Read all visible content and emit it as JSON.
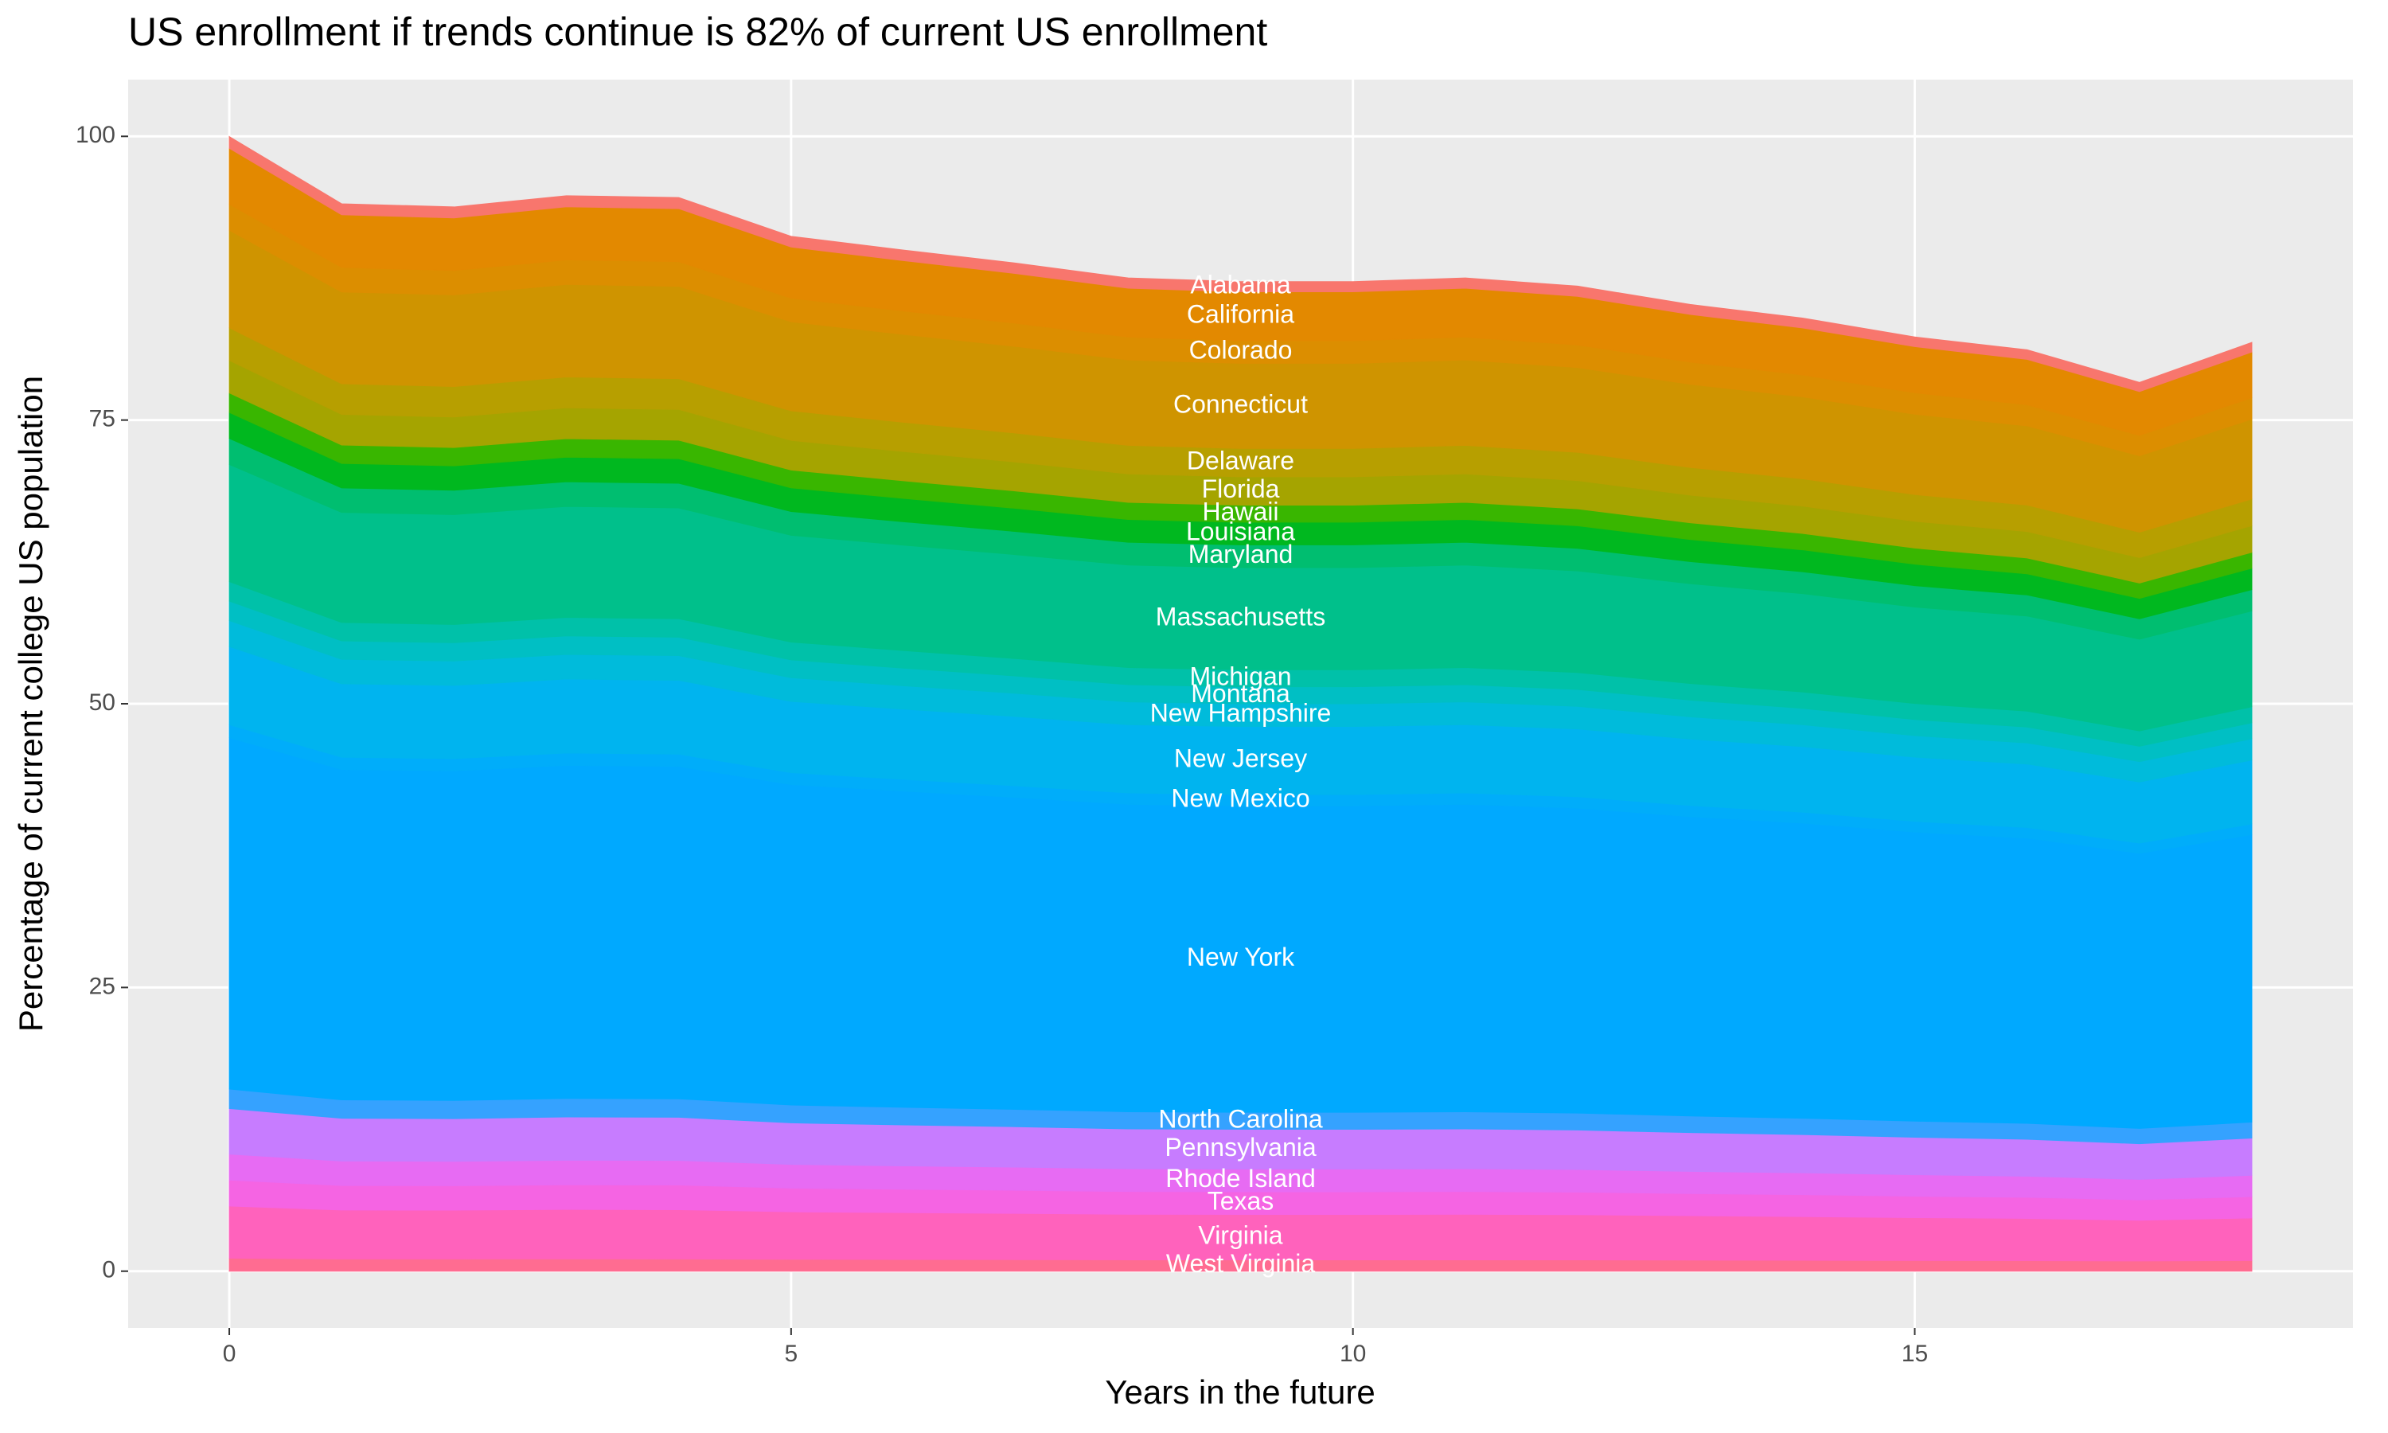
{
  "chart_data": {
    "type": "area",
    "title": "US enrollment if trends continue is 82% of current US enrollment",
    "x_label": "Years in the future",
    "y_label": "Percentage of current college US population",
    "x": [
      0,
      1,
      2,
      3,
      4,
      5,
      6,
      7,
      8,
      9,
      10,
      11,
      12,
      13,
      14,
      15,
      16,
      17,
      18
    ],
    "xlim": [
      -0.9,
      18.9
    ],
    "xticks": [
      0,
      5,
      10,
      15
    ],
    "ylim": [
      -5,
      105
    ],
    "yticks": [
      0,
      25,
      50,
      75,
      100
    ],
    "stacked": true,
    "grid": true,
    "series": [
      {
        "name": "Alabama",
        "color": "#f8766d",
        "values": [
          1.03,
          0.97,
          0.97,
          0.98,
          0.98,
          0.94,
          0.93,
          0.92,
          0.9,
          0.9,
          0.9,
          0.9,
          0.9,
          0.88,
          0.87,
          0.85,
          0.84,
          0.81,
          0.84
        ]
      },
      {
        "name": "California",
        "color": "#e38900",
        "values": [
          4.93,
          4.64,
          4.63,
          4.67,
          4.67,
          4.5,
          4.44,
          4.38,
          4.31,
          4.3,
          4.3,
          4.31,
          4.28,
          4.2,
          4.14,
          4.06,
          4.0,
          3.86,
          4.03
        ]
      },
      {
        "name": "Colorado",
        "color": "#dc8e00",
        "values": [
          2.29,
          2.16,
          2.15,
          2.17,
          2.17,
          2.09,
          2.06,
          2.04,
          2.01,
          2,
          2,
          2.01,
          1.99,
          1.95,
          1.93,
          1.89,
          1.86,
          1.8,
          1.88
        ]
      },
      {
        "name": "Connecticut",
        "color": "#cf9400",
        "values": [
          8.6,
          8.09,
          8.07,
          8.15,
          8.14,
          7.84,
          7.74,
          7.64,
          7.53,
          7.5,
          7.5,
          7.53,
          7.47,
          7.33,
          7.22,
          7.08,
          6.98,
          6.73,
          7.04
        ]
      },
      {
        "name": "Delaware",
        "color": "#b79f00",
        "values": [
          2.87,
          2.7,
          2.69,
          2.72,
          2.71,
          2.61,
          2.58,
          2.55,
          2.51,
          2.5,
          2.5,
          2.51,
          2.49,
          2.44,
          2.41,
          2.36,
          2.33,
          2.24,
          2.35
        ]
      },
      {
        "name": "Florida",
        "color": "#a5a400",
        "values": [
          2.87,
          2.7,
          2.69,
          2.72,
          2.71,
          2.61,
          2.58,
          2.55,
          2.51,
          2.5,
          2.5,
          2.51,
          2.49,
          2.44,
          2.41,
          2.36,
          2.33,
          2.24,
          2.35
        ]
      },
      {
        "name": "Hawaii",
        "color": "#39b600",
        "values": [
          1.72,
          1.62,
          1.61,
          1.63,
          1.63,
          1.57,
          1.55,
          1.53,
          1.51,
          1.5,
          1.5,
          1.51,
          1.49,
          1.47,
          1.44,
          1.42,
          1.4,
          1.35,
          1.41
        ]
      },
      {
        "name": "Louisiana",
        "color": "#00b81f",
        "values": [
          2.29,
          2.16,
          2.15,
          2.17,
          2.17,
          2.09,
          2.06,
          2.04,
          2.01,
          2,
          2,
          2.01,
          1.99,
          1.95,
          1.93,
          1.89,
          1.86,
          1.8,
          1.88
        ]
      },
      {
        "name": "Maryland",
        "color": "#00be70",
        "values": [
          2.29,
          2.16,
          2.15,
          2.17,
          2.17,
          2.09,
          2.06,
          2.04,
          2.01,
          2,
          2,
          2.01,
          1.99,
          1.95,
          1.93,
          1.89,
          1.86,
          1.8,
          1.88
        ]
      },
      {
        "name": "Massachusetts",
        "color": "#00c08b",
        "values": [
          10.32,
          9.7,
          9.68,
          9.78,
          9.76,
          9.41,
          9.29,
          9.16,
          9.03,
          9,
          9,
          9.03,
          8.96,
          8.79,
          8.67,
          8.49,
          8.38,
          8.08,
          8.44
        ]
      },
      {
        "name": "Michigan",
        "color": "#00c1a9",
        "values": [
          1.72,
          1.62,
          1.61,
          1.63,
          1.63,
          1.57,
          1.55,
          1.53,
          1.51,
          1.5,
          1.5,
          1.51,
          1.49,
          1.47,
          1.44,
          1.42,
          1.4,
          1.35,
          1.41
        ]
      },
      {
        "name": "Montana",
        "color": "#00bfc4",
        "values": [
          1.72,
          1.62,
          1.61,
          1.63,
          1.63,
          1.57,
          1.55,
          1.53,
          1.51,
          1.5,
          1.5,
          1.51,
          1.49,
          1.47,
          1.44,
          1.42,
          1.4,
          1.35,
          1.41
        ]
      },
      {
        "name": "New Hampshire",
        "color": "#00bbdb",
        "values": [
          2.29,
          2.16,
          2.15,
          2.17,
          2.17,
          2.09,
          2.06,
          2.04,
          2.01,
          2,
          2,
          2.01,
          1.99,
          1.95,
          1.93,
          1.89,
          1.86,
          1.8,
          1.88
        ]
      },
      {
        "name": "New Jersey",
        "color": "#00b4ef",
        "values": [
          6.88,
          6.47,
          6.45,
          6.52,
          6.51,
          6.28,
          6.19,
          6.11,
          6.02,
          6,
          6,
          6.02,
          5.97,
          5.86,
          5.78,
          5.66,
          5.59,
          5.39,
          5.63
        ]
      },
      {
        "name": "New Mexico",
        "color": "#00adfa",
        "values": [
          1.15,
          1.08,
          1.08,
          1.09,
          1.08,
          1.05,
          1.03,
          1.02,
          1,
          1,
          1,
          1,
          1,
          0.98,
          0.96,
          0.94,
          0.93,
          0.9,
          0.94
        ]
      },
      {
        "name": "New York",
        "color": "#00a9ff",
        "values": [
          30.96,
          29.11,
          29.04,
          29.35,
          29.29,
          28.24,
          27.87,
          27.49,
          27.09,
          27,
          27,
          27.09,
          26.88,
          26.38,
          26.01,
          25.48,
          25.14,
          24.24,
          25.33
        ]
      },
      {
        "name": "North Carolina",
        "color": "#35a2ff",
        "values": [
          1.72,
          1.62,
          1.61,
          1.63,
          1.63,
          1.57,
          1.55,
          1.53,
          1.51,
          1.5,
          1.5,
          1.51,
          1.49,
          1.47,
          1.44,
          1.42,
          1.4,
          1.35,
          1.41
        ]
      },
      {
        "name": "Pennsylvania",
        "color": "#c77cff",
        "values": [
          4.01,
          3.77,
          3.76,
          3.81,
          3.8,
          3.66,
          3.61,
          3.56,
          3.51,
          3.5,
          3.5,
          3.51,
          3.48,
          3.42,
          3.37,
          3.3,
          3.26,
          3.14,
          3.28
        ]
      },
      {
        "name": "Rhode Island",
        "color": "#e76bf3",
        "values": [
          2.29,
          2.16,
          2.15,
          2.17,
          2.17,
          2.09,
          2.06,
          2.04,
          2.01,
          2,
          2,
          2.01,
          1.99,
          1.95,
          1.93,
          1.89,
          1.86,
          1.8,
          1.88
        ]
      },
      {
        "name": "Texas",
        "color": "#f564e3",
        "values": [
          2.29,
          2.16,
          2.15,
          2.17,
          2.17,
          2.09,
          2.06,
          2.04,
          2.01,
          2,
          2,
          2.01,
          1.99,
          1.95,
          1.93,
          1.89,
          1.86,
          1.8,
          1.88
        ]
      },
      {
        "name": "Virginia",
        "color": "#ff62bc",
        "values": [
          4.59,
          4.31,
          4.3,
          4.35,
          4.34,
          4.18,
          4.13,
          4.07,
          4.01,
          4,
          4,
          4.01,
          3.98,
          3.91,
          3.85,
          3.78,
          3.72,
          3.59,
          3.75
        ]
      },
      {
        "name": "West Virginia",
        "color": "#ff6c91",
        "values": [
          1.15,
          1.08,
          1.08,
          1.09,
          1.08,
          1.05,
          1.03,
          1.02,
          1,
          1,
          1,
          1,
          1,
          0.98,
          0.96,
          0.94,
          0.93,
          0.9,
          0.94
        ]
      }
    ]
  }
}
